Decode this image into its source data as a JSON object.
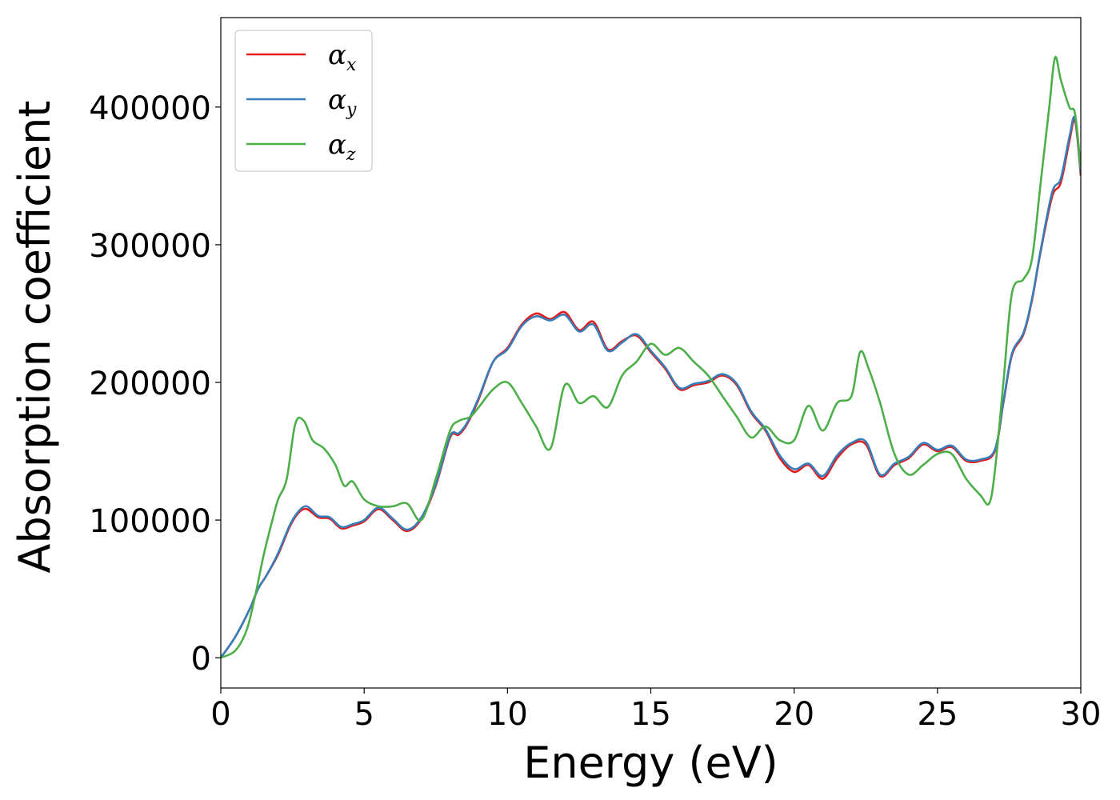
{
  "chart_data": {
    "type": "line",
    "xlabel": "Energy (eV)",
    "ylabel": "Absorption coefficient",
    "xlim": [
      0,
      30
    ],
    "ylim": [
      -22000,
      465000
    ],
    "xticks": [
      0,
      5,
      10,
      15,
      20,
      25,
      30
    ],
    "xtick_labels": [
      "0",
      "5",
      "10",
      "15",
      "20",
      "25",
      "30"
    ],
    "yticks": [
      0,
      100000,
      200000,
      300000,
      400000
    ],
    "ytick_labels": [
      "0",
      "100000",
      "200000",
      "300000",
      "400000"
    ],
    "grid": false,
    "legend_position": "top-left",
    "series": [
      {
        "name": "αx",
        "legend_base": "α",
        "legend_sub": "x",
        "color": "#e41a1c",
        "x": [
          0,
          0.5,
          1.0,
          1.3,
          1.6,
          2.0,
          2.4,
          2.7,
          3.0,
          3.4,
          3.8,
          4.2,
          4.6,
          5.0,
          5.5,
          6.0,
          6.5,
          7.0,
          7.5,
          8.0,
          8.3,
          8.6,
          9.0,
          9.5,
          10.0,
          10.5,
          11.0,
          11.5,
          12.0,
          12.5,
          13.0,
          13.5,
          14.0,
          14.5,
          15.0,
          15.5,
          16.0,
          16.5,
          17.0,
          17.5,
          18.0,
          18.5,
          19.0,
          19.5,
          20.0,
          20.5,
          21.0,
          21.5,
          22.0,
          22.5,
          23.0,
          23.5,
          24.0,
          24.5,
          25.0,
          25.5,
          26.0,
          26.5,
          27.0,
          27.3,
          27.6,
          28.0,
          28.3,
          28.6,
          29.0,
          29.3,
          29.6,
          29.8,
          30.0
        ],
        "y": [
          0,
          15000,
          35000,
          50000,
          60000,
          75000,
          95000,
          105000,
          108000,
          102000,
          101000,
          94000,
          96000,
          99000,
          108000,
          100000,
          92000,
          101000,
          125000,
          160000,
          162000,
          170000,
          188000,
          215000,
          225000,
          242000,
          250000,
          246000,
          251000,
          238000,
          244000,
          224000,
          230000,
          234000,
          222000,
          210000,
          195000,
          198000,
          200000,
          205000,
          198000,
          178000,
          165000,
          145000,
          135000,
          140000,
          130000,
          145000,
          155000,
          155000,
          132000,
          140000,
          145000,
          155000,
          150000,
          153000,
          143000,
          143000,
          150000,
          185000,
          220000,
          235000,
          260000,
          295000,
          335000,
          345000,
          375000,
          390000,
          350000
        ]
      },
      {
        "name": "αy",
        "legend_base": "α",
        "legend_sub": "y",
        "color": "#377eb8",
        "x": [
          0,
          0.5,
          1.0,
          1.3,
          1.6,
          2.0,
          2.4,
          2.7,
          3.0,
          3.4,
          3.8,
          4.2,
          4.6,
          5.0,
          5.5,
          6.0,
          6.5,
          7.0,
          7.5,
          8.0,
          8.3,
          8.6,
          9.0,
          9.5,
          10.0,
          10.5,
          11.0,
          11.5,
          12.0,
          12.5,
          13.0,
          13.5,
          14.0,
          14.5,
          15.0,
          15.5,
          16.0,
          16.5,
          17.0,
          17.5,
          18.0,
          18.5,
          19.0,
          19.5,
          20.0,
          20.5,
          21.0,
          21.5,
          22.0,
          22.5,
          23.0,
          23.5,
          24.0,
          24.5,
          25.0,
          25.5,
          26.0,
          26.5,
          27.0,
          27.3,
          27.6,
          28.0,
          28.3,
          28.6,
          29.0,
          29.3,
          29.6,
          29.8,
          30.0
        ],
        "y": [
          0,
          15000,
          35000,
          50000,
          60000,
          76000,
          96000,
          106000,
          110000,
          103000,
          102000,
          95000,
          97000,
          100000,
          109000,
          101000,
          93000,
          102000,
          126000,
          161000,
          163000,
          171000,
          189000,
          215000,
          224000,
          241000,
          248000,
          245000,
          249000,
          237000,
          242000,
          223000,
          229000,
          235000,
          223000,
          211000,
          196000,
          199000,
          201000,
          206000,
          199000,
          179000,
          166000,
          147000,
          137000,
          141000,
          132000,
          147000,
          156000,
          157000,
          133000,
          141000,
          146000,
          156000,
          151000,
          154000,
          144000,
          144000,
          151000,
          186000,
          221000,
          236000,
          261000,
          296000,
          338000,
          348000,
          378000,
          392000,
          352000
        ]
      },
      {
        "name": "αz",
        "legend_base": "α",
        "legend_sub": "z",
        "color": "#4daf4a",
        "x": [
          0,
          0.5,
          0.9,
          1.2,
          1.5,
          1.8,
          2.0,
          2.3,
          2.6,
          2.9,
          3.2,
          3.6,
          4.0,
          4.3,
          4.6,
          5.0,
          5.5,
          6.0,
          6.5,
          7.0,
          7.5,
          8.0,
          8.3,
          8.7,
          9.0,
          9.5,
          10.0,
          10.5,
          11.0,
          11.5,
          12.0,
          12.5,
          13.0,
          13.5,
          14.0,
          14.5,
          15.0,
          15.5,
          16.0,
          16.5,
          17.0,
          17.5,
          18.0,
          18.5,
          19.0,
          19.5,
          20.0,
          20.5,
          21.0,
          21.5,
          22.0,
          22.3,
          22.6,
          23.0,
          23.5,
          24.0,
          24.5,
          25.0,
          25.5,
          26.0,
          26.5,
          26.8,
          27.0,
          27.3,
          27.6,
          28.0,
          28.3,
          28.6,
          28.9,
          29.1,
          29.3,
          29.6,
          29.8,
          30.0
        ],
        "y": [
          0,
          5000,
          20000,
          45000,
          75000,
          100000,
          115000,
          130000,
          170000,
          172000,
          158000,
          152000,
          140000,
          125000,
          128000,
          115000,
          110000,
          110000,
          112000,
          100000,
          130000,
          165000,
          172000,
          175000,
          182000,
          195000,
          200000,
          185000,
          168000,
          152000,
          198000,
          185000,
          190000,
          182000,
          205000,
          215000,
          228000,
          220000,
          225000,
          215000,
          205000,
          190000,
          175000,
          160000,
          168000,
          158000,
          158000,
          183000,
          165000,
          185000,
          190000,
          222000,
          210000,
          185000,
          148000,
          133000,
          140000,
          148000,
          148000,
          130000,
          118000,
          112000,
          135000,
          200000,
          265000,
          275000,
          290000,
          345000,
          400000,
          436000,
          420000,
          400000,
          395000,
          355000
        ]
      }
    ]
  }
}
